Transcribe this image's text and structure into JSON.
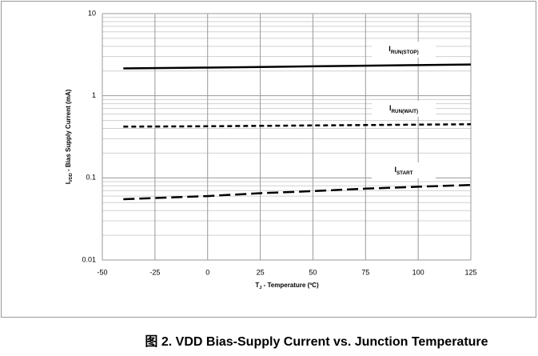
{
  "chart_data": {
    "type": "line",
    "caption": "图 2. VDD Bias-Supply Current vs. Junction Temperature",
    "x_label": "TJ - Temperature (ºC)",
    "y_label": "IVDD - Bias Supply Current (mA)",
    "x": [
      -40,
      0,
      25,
      50,
      75,
      100,
      125
    ],
    "series": [
      {
        "name": "IRUN(STOP)",
        "color": "#000000",
        "linestyle": "solid",
        "values": [
          2.15,
          2.2,
          2.24,
          2.28,
          2.32,
          2.36,
          2.4
        ]
      },
      {
        "name": "IRUN(WAIT)",
        "color": "#000000",
        "linestyle": "dashed",
        "values": [
          0.42,
          0.425,
          0.43,
          0.435,
          0.44,
          0.445,
          0.45
        ]
      },
      {
        "name": "ISTART",
        "color": "#000000",
        "linestyle": "longdash",
        "values": [
          0.055,
          0.06,
          0.065,
          0.069,
          0.074,
          0.078,
          0.082
        ]
      }
    ],
    "xlim": [
      -50,
      125
    ],
    "xticks": [
      -50,
      -25,
      0,
      25,
      50,
      75,
      100,
      125
    ],
    "ylim": [
      0.01,
      10
    ],
    "yticks": [
      0.01,
      0.1,
      1,
      10
    ],
    "y_log": true,
    "grid": true
  }
}
